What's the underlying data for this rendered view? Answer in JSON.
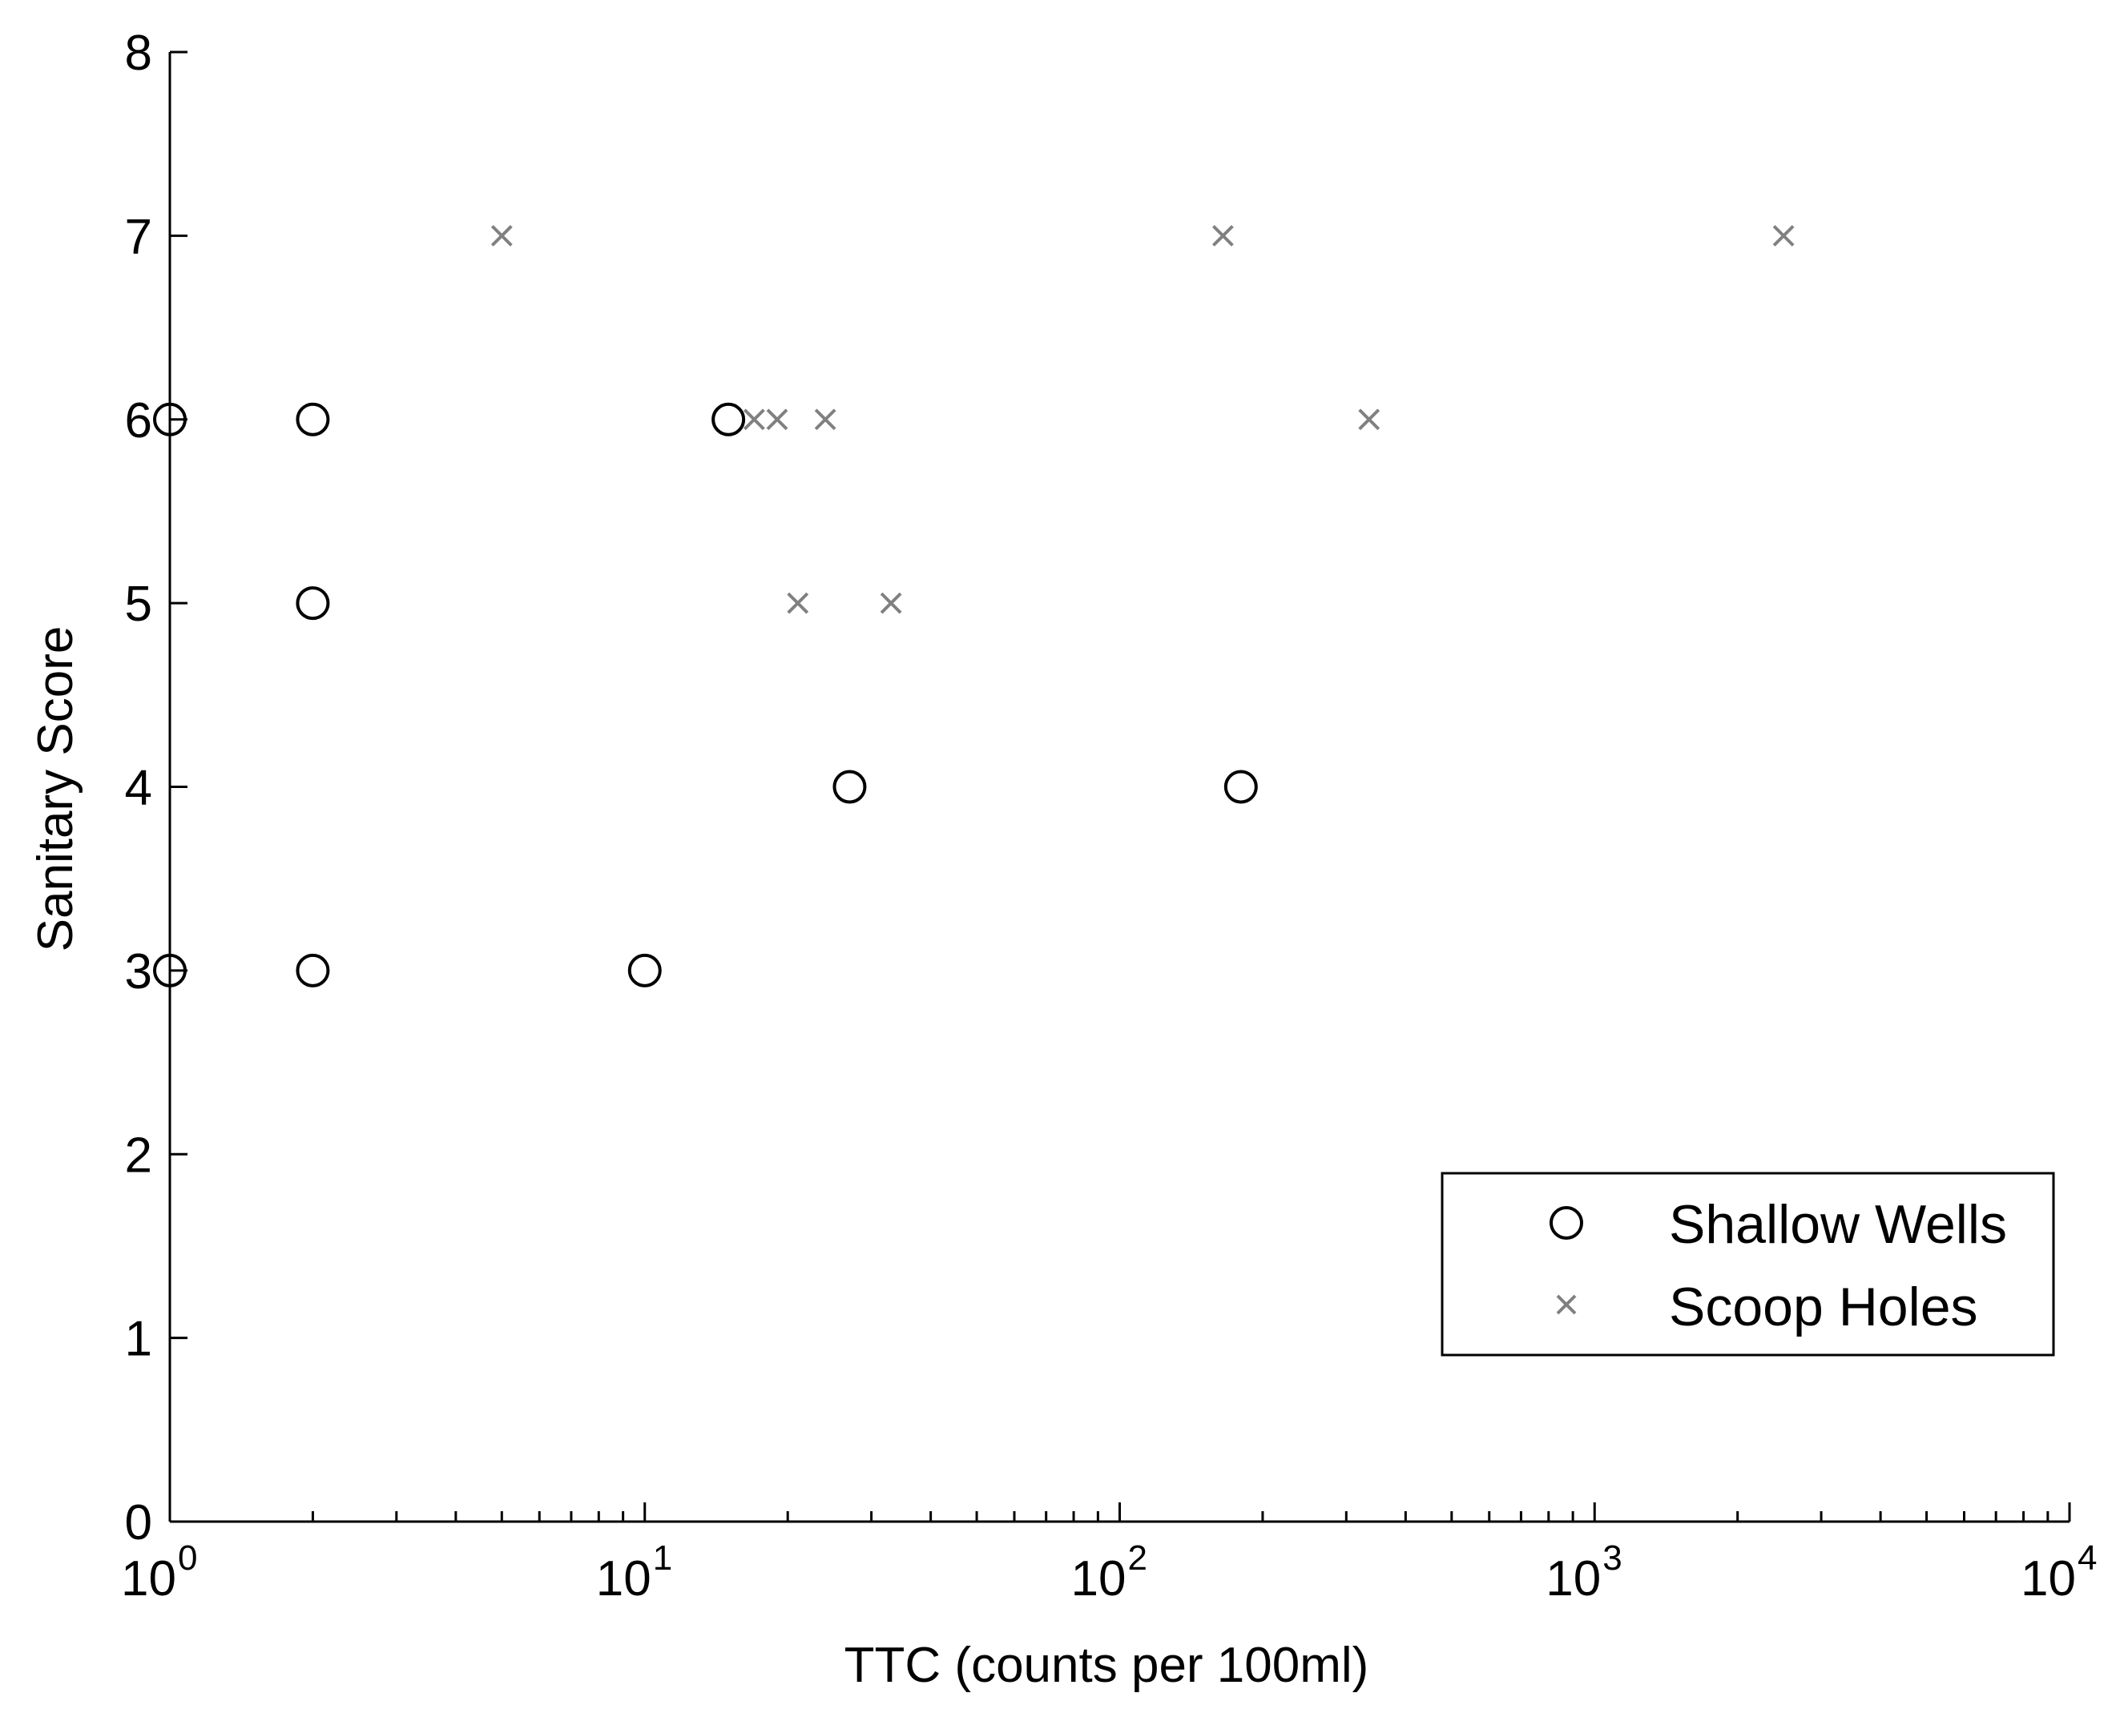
{
  "chart_data": {
    "type": "scatter",
    "title": "",
    "xlabel": "TTC (counts per 100ml)",
    "ylabel": "Sanitary Score",
    "xscale": "log",
    "xlim": [
      1,
      10000
    ],
    "ylim": [
      0,
      8
    ],
    "x_tick_labels": [
      {
        "value": 1,
        "base": "10",
        "exp": "0"
      },
      {
        "value": 10,
        "base": "10",
        "exp": "1"
      },
      {
        "value": 100,
        "base": "10",
        "exp": "2"
      },
      {
        "value": 1000,
        "base": "10",
        "exp": "3"
      },
      {
        "value": 10000,
        "base": "10",
        "exp": "4"
      }
    ],
    "y_ticks": [
      "0",
      "1",
      "2",
      "3",
      "4",
      "5",
      "6",
      "7",
      "8"
    ],
    "grid": false,
    "legend_position": "bottom-right",
    "series": [
      {
        "name": "Shallow Wells",
        "marker": "circle",
        "color": "#000000",
        "points": [
          {
            "x": 1,
            "y": 6
          },
          {
            "x": 1,
            "y": 3
          },
          {
            "x": 2,
            "y": 6
          },
          {
            "x": 2,
            "y": 5
          },
          {
            "x": 2,
            "y": 3
          },
          {
            "x": 10,
            "y": 3
          },
          {
            "x": 15,
            "y": 6
          },
          {
            "x": 27,
            "y": 4
          },
          {
            "x": 180,
            "y": 4
          }
        ]
      },
      {
        "name": "Scoop Holes",
        "marker": "x",
        "color": "#808080",
        "points": [
          {
            "x": 5,
            "y": 7
          },
          {
            "x": 17,
            "y": 6
          },
          {
            "x": 19,
            "y": 6
          },
          {
            "x": 24,
            "y": 6
          },
          {
            "x": 21,
            "y": 5
          },
          {
            "x": 33,
            "y": 5
          },
          {
            "x": 165,
            "y": 7
          },
          {
            "x": 335,
            "y": 6
          },
          {
            "x": 2500,
            "y": 7
          }
        ]
      }
    ]
  }
}
